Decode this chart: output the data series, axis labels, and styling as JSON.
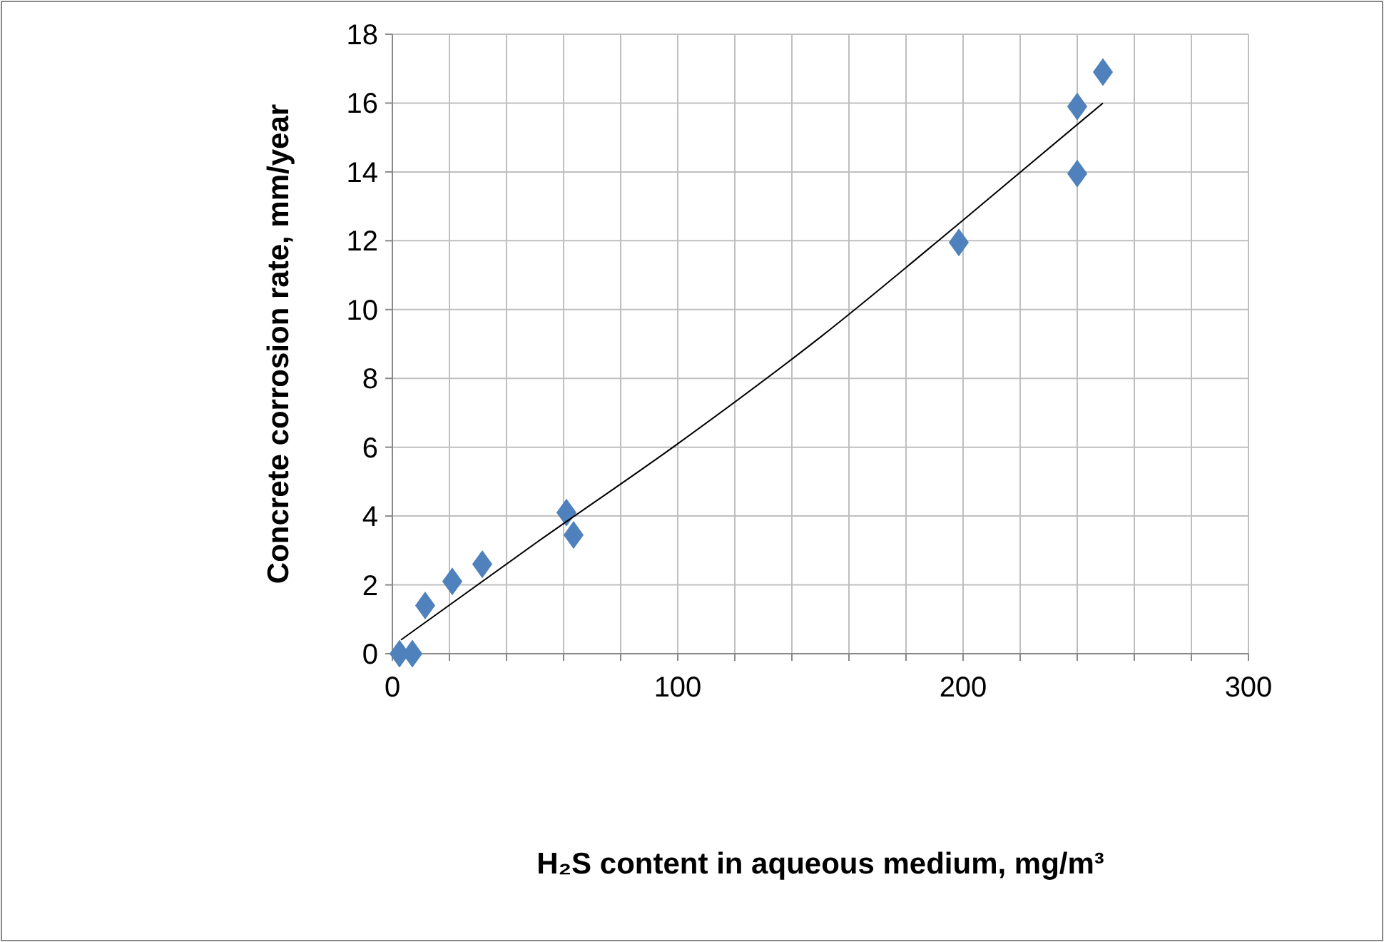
{
  "chart_data": {
    "type": "scatter",
    "xlabel": "H₂S content in aqueous medium, mg/m³",
    "ylabel": "Concrete corrosion rate, mm/year",
    "xlim": [
      0,
      300
    ],
    "ylim": [
      0,
      18
    ],
    "xticks": [
      0,
      {
        "value": 20,
        "label": null
      },
      {
        "value": 40,
        "label": null
      },
      {
        "value": 60,
        "label": null
      },
      {
        "value": 80,
        "label": null
      },
      100,
      {
        "value": 120,
        "label": null
      },
      {
        "value": 140,
        "label": null
      },
      {
        "value": 160,
        "label": null
      },
      {
        "value": 180,
        "label": null
      },
      200,
      {
        "value": 220,
        "label": null
      },
      {
        "value": 240,
        "label": null
      },
      {
        "value": 260,
        "label": null
      },
      {
        "value": 280,
        "label": null
      },
      300
    ],
    "yticks": [
      0,
      2,
      4,
      6,
      8,
      10,
      12,
      14,
      16,
      18
    ],
    "grid": true,
    "series": [
      {
        "color": "#4f81bd",
        "marker": "diamond",
        "x": [
          2.5,
          7,
          11.5,
          21,
          31.5,
          61,
          63.5,
          198.5,
          240,
          240,
          249
        ],
        "values": [
          0,
          0,
          1.4,
          2.1,
          2.6,
          4.1,
          3.45,
          11.95,
          15.9,
          13.95,
          16.9
        ]
      },
      {
        "type": "line",
        "color": "#000000",
        "marker": "none",
        "line_style": "solid",
        "x": [
          3,
          50,
          100,
          150,
          200,
          249
        ],
        "values": [
          0.4,
          3.2,
          6.1,
          9.2,
          12.6,
          16.0
        ]
      }
    ]
  }
}
